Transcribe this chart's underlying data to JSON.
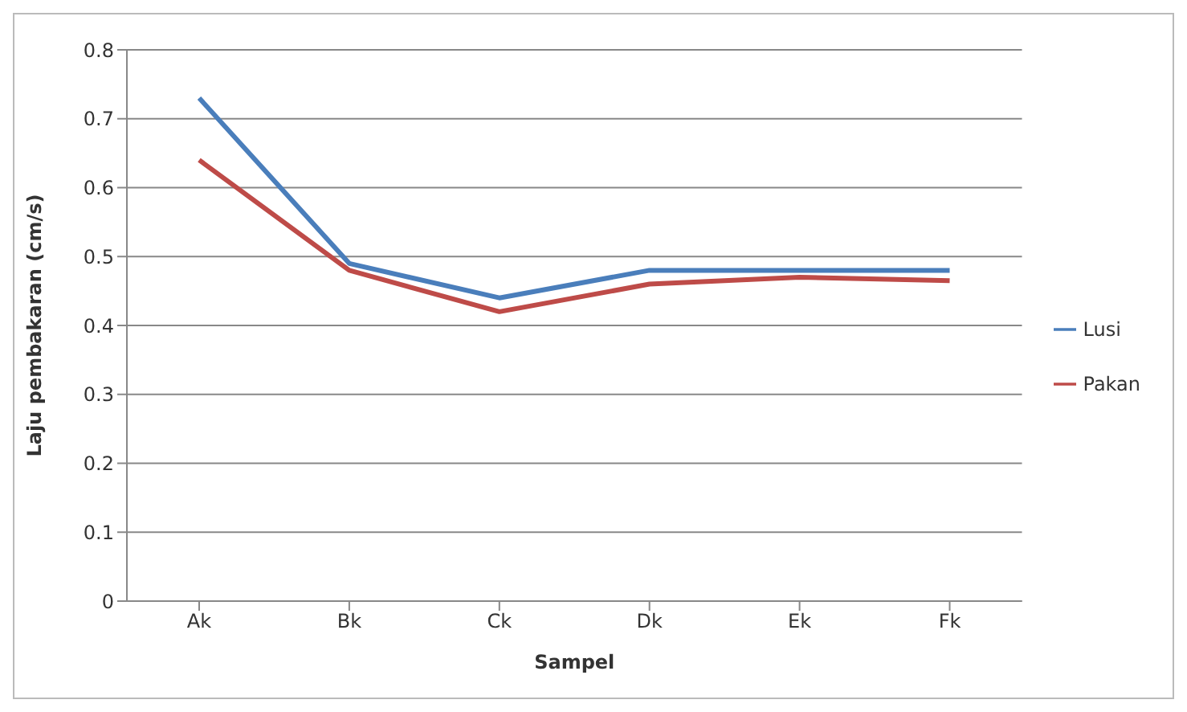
{
  "chart_data": {
    "type": "line",
    "xlabel": "Sampel",
    "ylabel": "Laju pembakaran (cm/s)",
    "categories": [
      "Ak",
      "Bk",
      "Ck",
      "Dk",
      "Ek",
      "Fk"
    ],
    "series": [
      {
        "name": "Lusi",
        "color": "#4a7ebb",
        "values": [
          0.73,
          0.49,
          0.44,
          0.48,
          0.48,
          0.48
        ]
      },
      {
        "name": "Pakan",
        "color": "#be4b48",
        "values": [
          0.64,
          0.48,
          0.42,
          0.46,
          0.47,
          0.465
        ]
      }
    ],
    "ylim": [
      0,
      0.8
    ],
    "yticks": [
      0,
      0.1,
      0.2,
      0.3,
      0.4,
      0.5,
      0.6,
      0.7,
      0.8
    ],
    "grid": "y",
    "legend": "right",
    "marker": "none",
    "line_style": "solid"
  }
}
